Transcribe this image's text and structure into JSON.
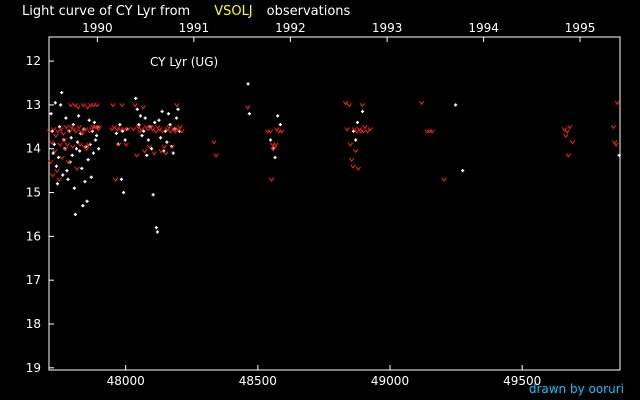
{
  "header": {
    "title_left": "Light curve of CY Lyr from",
    "title_source": "VSOLJ",
    "title_right": "observations"
  },
  "footer": {
    "credit": "drawn by ooruri"
  },
  "colors": {
    "background": "#000000",
    "axes": "#ffffff",
    "visual": "#ffffff",
    "fainter_than": "#ff2020",
    "source": "#ffff00",
    "credit": "#00c8ff"
  },
  "chart_data": {
    "type": "scatter",
    "star_label": "CY Lyr (UG)",
    "xlim": [
      47710,
      49870
    ],
    "ylim": [
      19.05,
      11.45
    ],
    "y_inverted": true,
    "x_ticks": [
      48000,
      48500,
      49000,
      49500
    ],
    "y_ticks": [
      12,
      13,
      14,
      15,
      16,
      17,
      18,
      19
    ],
    "year_ticks": [
      {
        "label": "1990",
        "jd": 47893
      },
      {
        "label": "1991",
        "jd": 48258
      },
      {
        "label": "1992",
        "jd": 48623
      },
      {
        "label": "1993",
        "jd": 48989
      },
      {
        "label": "1994",
        "jd": 49354
      },
      {
        "label": "1995",
        "jd": 49719
      }
    ],
    "grid": false,
    "series": [
      {
        "marker": "dot",
        "points": [
          [
            47718,
            13.2
          ],
          [
            47722,
            13.6
          ],
          [
            47726,
            14.1
          ],
          [
            47730,
            13.9
          ],
          [
            47734,
            12.95
          ],
          [
            47738,
            14.4
          ],
          [
            47742,
            14.8
          ],
          [
            47746,
            14.2
          ],
          [
            47750,
            13.5
          ],
          [
            47754,
            13.0
          ],
          [
            47758,
            12.72
          ],
          [
            47762,
            14.6
          ],
          [
            47766,
            13.8
          ],
          [
            47770,
            14.0
          ],
          [
            47774,
            13.3
          ],
          [
            47778,
            14.5
          ],
          [
            47782,
            14.7
          ],
          [
            47786,
            13.6
          ],
          [
            47790,
            14.3
          ],
          [
            47794,
            13.75
          ],
          [
            47798,
            14.15
          ],
          [
            47802,
            13.45
          ],
          [
            47806,
            14.9
          ],
          [
            47810,
            15.5
          ],
          [
            47814,
            14.0
          ],
          [
            47818,
            13.85
          ],
          [
            47822,
            13.25
          ],
          [
            47826,
            14.05
          ],
          [
            47830,
            13.65
          ],
          [
            47834,
            14.45
          ],
          [
            47838,
            15.3
          ],
          [
            47842,
            13.55
          ],
          [
            47846,
            14.75
          ],
          [
            47850,
            13.95
          ],
          [
            47854,
            15.2
          ],
          [
            47858,
            14.25
          ],
          [
            47862,
            13.35
          ],
          [
            47866,
            13.9
          ],
          [
            47870,
            14.65
          ],
          [
            47874,
            13.6
          ],
          [
            47878,
            14.1
          ],
          [
            47882,
            13.4
          ],
          [
            47886,
            13.8
          ],
          [
            47890,
            13.7
          ],
          [
            47894,
            13.5
          ],
          [
            47898,
            14.0
          ],
          [
            47965,
            13.65
          ],
          [
            47972,
            13.9
          ],
          [
            47978,
            13.45
          ],
          [
            47984,
            14.7
          ],
          [
            47988,
            13.6
          ],
          [
            47992,
            15.0
          ],
          [
            47998,
            13.8
          ],
          [
            48004,
            13.55
          ],
          [
            48038,
            12.85
          ],
          [
            48044,
            13.1
          ],
          [
            48050,
            13.45
          ],
          [
            48056,
            13.25
          ],
          [
            48062,
            13.7
          ],
          [
            48068,
            13.6
          ],
          [
            48074,
            13.3
          ],
          [
            48080,
            14.15
          ],
          [
            48086,
            13.8
          ],
          [
            48092,
            13.5
          ],
          [
            48098,
            14.0
          ],
          [
            48104,
            15.05
          ],
          [
            48110,
            13.4
          ],
          [
            48116,
            15.8
          ],
          [
            48120,
            15.9
          ],
          [
            48126,
            13.35
          ],
          [
            48132,
            13.75
          ],
          [
            48138,
            13.15
          ],
          [
            48144,
            14.05
          ],
          [
            48150,
            13.6
          ],
          [
            48156,
            13.85
          ],
          [
            48162,
            13.2
          ],
          [
            48168,
            13.45
          ],
          [
            48174,
            13.95
          ],
          [
            48180,
            14.1
          ],
          [
            48186,
            13.55
          ],
          [
            48192,
            13.3
          ],
          [
            48198,
            13.1
          ],
          [
            48204,
            13.6
          ],
          [
            48463,
            12.52
          ],
          [
            48468,
            13.2
          ],
          [
            48548,
            13.8
          ],
          [
            48558,
            14.0
          ],
          [
            48565,
            14.2
          ],
          [
            48575,
            13.25
          ],
          [
            48585,
            13.45
          ],
          [
            48862,
            13.6
          ],
          [
            48870,
            13.8
          ],
          [
            48877,
            13.4
          ],
          [
            48896,
            13.15
          ],
          [
            49248,
            13.0
          ],
          [
            49275,
            14.5
          ],
          [
            49867,
            14.15
          ]
        ]
      },
      {
        "marker": "fainter-than",
        "points": [
          [
            47712,
            13.6
          ],
          [
            47716,
            14.3
          ],
          [
            47720,
            13.85
          ],
          [
            47724,
            14.6
          ],
          [
            47728,
            13.55
          ],
          [
            47732,
            14.05
          ],
          [
            47736,
            13.7
          ],
          [
            47740,
            14.5
          ],
          [
            47744,
            13.6
          ],
          [
            47748,
            14.7
          ],
          [
            47752,
            13.9
          ],
          [
            47756,
            13.55
          ],
          [
            47760,
            14.2
          ],
          [
            47764,
            13.65
          ],
          [
            47768,
            13.8
          ],
          [
            47772,
            14.0
          ],
          [
            47776,
            13.5
          ],
          [
            47780,
            13.9
          ],
          [
            47784,
            14.3
          ],
          [
            47788,
            13.6
          ],
          [
            47792,
            13.0
          ],
          [
            47796,
            13.5
          ],
          [
            47800,
            13.95
          ],
          [
            47804,
            13.55
          ],
          [
            47808,
            13.0
          ],
          [
            47812,
            13.6
          ],
          [
            47816,
            14.45
          ],
          [
            47820,
            13.05
          ],
          [
            47824,
            13.5
          ],
          [
            47828,
            13.9
          ],
          [
            47832,
            13.6
          ],
          [
            47836,
            13.65
          ],
          [
            47840,
            13.0
          ],
          [
            47844,
            13.95
          ],
          [
            47848,
            13.55
          ],
          [
            47852,
            14.0
          ],
          [
            47856,
            13.05
          ],
          [
            47860,
            13.9
          ],
          [
            47864,
            13.6
          ],
          [
            47868,
            13.0
          ],
          [
            47872,
            13.55
          ],
          [
            47876,
            13.5
          ],
          [
            47880,
            13.0
          ],
          [
            47884,
            13.5
          ],
          [
            47888,
            13.5
          ],
          [
            47892,
            13.0
          ],
          [
            47896,
            13.55
          ],
          [
            47900,
            13.5
          ],
          [
            47948,
            13.55
          ],
          [
            47952,
            13.0
          ],
          [
            47956,
            13.5
          ],
          [
            47962,
            14.7
          ],
          [
            47968,
            13.55
          ],
          [
            47974,
            13.9
          ],
          [
            47980,
            13.55
          ],
          [
            47986,
            13.0
          ],
          [
            47996,
            13.55
          ],
          [
            48002,
            13.9
          ],
          [
            48008,
            13.55
          ],
          [
            48030,
            13.55
          ],
          [
            48036,
            13.0
          ],
          [
            48042,
            14.15
          ],
          [
            48048,
            13.5
          ],
          [
            48054,
            13.6
          ],
          [
            48060,
            13.55
          ],
          [
            48066,
            13.05
          ],
          [
            48072,
            14.05
          ],
          [
            48078,
            13.5
          ],
          [
            48084,
            13.55
          ],
          [
            48090,
            13.95
          ],
          [
            48096,
            13.5
          ],
          [
            48102,
            13.55
          ],
          [
            48108,
            14.1
          ],
          [
            48114,
            13.6
          ],
          [
            48122,
            13.5
          ],
          [
            48128,
            13.55
          ],
          [
            48134,
            14.05
          ],
          [
            48140,
            13.6
          ],
          [
            48146,
            13.95
          ],
          [
            48152,
            14.1
          ],
          [
            48158,
            13.55
          ],
          [
            48164,
            13.5
          ],
          [
            48170,
            13.6
          ],
          [
            48176,
            13.95
          ],
          [
            48182,
            13.55
          ],
          [
            48188,
            13.6
          ],
          [
            48194,
            13.0
          ],
          [
            48200,
            13.55
          ],
          [
            48206,
            13.5
          ],
          [
            48212,
            13.6
          ],
          [
            48334,
            13.85
          ],
          [
            48342,
            14.15
          ],
          [
            48462,
            13.05
          ],
          [
            48537,
            13.6
          ],
          [
            48548,
            13.6
          ],
          [
            48552,
            14.7
          ],
          [
            48556,
            13.9
          ],
          [
            48560,
            14.0
          ],
          [
            48564,
            13.95
          ],
          [
            48568,
            13.9
          ],
          [
            48572,
            13.55
          ],
          [
            48580,
            13.6
          ],
          [
            48590,
            13.6
          ],
          [
            48832,
            12.95
          ],
          [
            48838,
            13.55
          ],
          [
            48845,
            13.0
          ],
          [
            48850,
            13.9
          ],
          [
            48855,
            14.25
          ],
          [
            48860,
            14.4
          ],
          [
            48865,
            13.55
          ],
          [
            48870,
            14.05
          ],
          [
            48875,
            13.6
          ],
          [
            48880,
            14.45
          ],
          [
            48885,
            13.55
          ],
          [
            48890,
            13.6
          ],
          [
            48895,
            13.0
          ],
          [
            48900,
            13.6
          ],
          [
            48905,
            13.5
          ],
          [
            48915,
            13.6
          ],
          [
            48925,
            13.55
          ],
          [
            49120,
            12.95
          ],
          [
            49140,
            13.6
          ],
          [
            49150,
            13.6
          ],
          [
            49160,
            13.6
          ],
          [
            49205,
            14.7
          ],
          [
            49660,
            13.55
          ],
          [
            49665,
            13.7
          ],
          [
            49670,
            13.6
          ],
          [
            49675,
            14.15
          ],
          [
            49680,
            13.5
          ],
          [
            49690,
            13.85
          ],
          [
            49845,
            13.5
          ],
          [
            49850,
            13.85
          ],
          [
            49855,
            13.9
          ],
          [
            49860,
            12.95
          ]
        ]
      }
    ]
  }
}
